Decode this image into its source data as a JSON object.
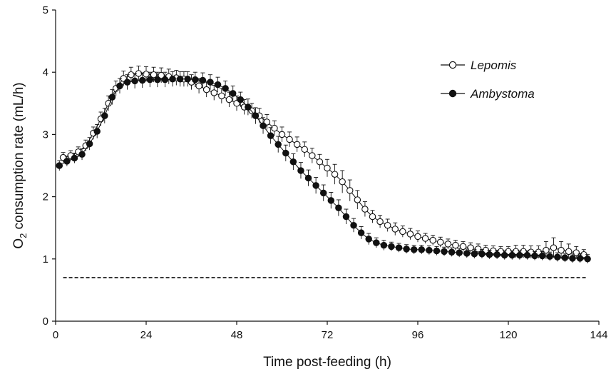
{
  "chart_data": {
    "type": "line",
    "title": "",
    "xlabel": "Time post-feeding (h)",
    "ylabel_parts": [
      "O",
      "2",
      " consumption rate (mL/h)"
    ],
    "xlim": [
      0,
      144
    ],
    "ylim": [
      0,
      5
    ],
    "xticks": [
      0,
      24,
      48,
      72,
      96,
      120,
      144
    ],
    "yticks": [
      0,
      1,
      2,
      3,
      4,
      5
    ],
    "grid": false,
    "legend_position": "top-right",
    "baseline": {
      "style": "dashed",
      "value": 0.7,
      "x_range": [
        2,
        141
      ]
    },
    "series": [
      {
        "name": "Lepomis",
        "marker": "open-circle",
        "color": "#111111",
        "x": [
          2,
          4,
          6,
          8,
          10,
          12,
          14,
          16,
          18,
          20,
          22,
          24,
          26,
          28,
          30,
          32,
          34,
          36,
          38,
          40,
          42,
          44,
          46,
          48,
          50,
          52,
          54,
          56,
          58,
          60,
          62,
          64,
          66,
          68,
          70,
          72,
          74,
          76,
          78,
          80,
          82,
          84,
          86,
          88,
          90,
          92,
          94,
          96,
          98,
          100,
          102,
          104,
          106,
          108,
          110,
          112,
          114,
          116,
          118,
          120,
          122,
          124,
          126,
          128,
          130,
          132,
          134,
          136,
          138,
          140
        ],
        "y": [
          2.63,
          2.66,
          2.72,
          2.82,
          3.02,
          3.25,
          3.5,
          3.74,
          3.9,
          3.96,
          3.98,
          3.97,
          3.96,
          3.95,
          3.93,
          3.91,
          3.89,
          3.84,
          3.78,
          3.72,
          3.67,
          3.62,
          3.56,
          3.5,
          3.44,
          3.38,
          3.3,
          3.2,
          3.1,
          3.0,
          2.92,
          2.84,
          2.76,
          2.66,
          2.56,
          2.46,
          2.36,
          2.24,
          2.1,
          1.95,
          1.8,
          1.68,
          1.6,
          1.54,
          1.48,
          1.44,
          1.4,
          1.36,
          1.33,
          1.3,
          1.27,
          1.24,
          1.22,
          1.2,
          1.18,
          1.16,
          1.14,
          1.13,
          1.12,
          1.12,
          1.12,
          1.12,
          1.11,
          1.11,
          1.14,
          1.18,
          1.14,
          1.12,
          1.1,
          1.07
        ],
        "err": [
          0.08,
          0.08,
          0.08,
          0.09,
          0.1,
          0.11,
          0.12,
          0.12,
          0.12,
          0.12,
          0.12,
          0.12,
          0.12,
          0.12,
          0.12,
          0.12,
          0.12,
          0.12,
          0.12,
          0.12,
          0.12,
          0.12,
          0.12,
          0.12,
          0.12,
          0.12,
          0.12,
          0.12,
          0.12,
          0.12,
          0.12,
          0.12,
          0.12,
          0.12,
          0.12,
          0.14,
          0.16,
          0.18,
          0.17,
          0.15,
          0.12,
          0.1,
          0.1,
          0.1,
          0.1,
          0.09,
          0.09,
          0.09,
          0.08,
          0.08,
          0.08,
          0.08,
          0.08,
          0.08,
          0.08,
          0.08,
          0.08,
          0.08,
          0.08,
          0.08,
          0.1,
          0.1,
          0.1,
          0.1,
          0.14,
          0.16,
          0.14,
          0.12,
          0.1,
          0.08
        ]
      },
      {
        "name": "Ambystoma",
        "marker": "filled-circle",
        "color": "#111111",
        "x": [
          1,
          3,
          5,
          7,
          9,
          11,
          13,
          15,
          17,
          19,
          21,
          23,
          25,
          27,
          29,
          31,
          33,
          35,
          37,
          39,
          41,
          43,
          45,
          47,
          49,
          51,
          53,
          55,
          57,
          59,
          61,
          63,
          65,
          67,
          69,
          71,
          73,
          75,
          77,
          79,
          81,
          83,
          85,
          87,
          89,
          91,
          93,
          95,
          97,
          99,
          101,
          103,
          105,
          107,
          109,
          111,
          113,
          115,
          117,
          119,
          121,
          123,
          125,
          127,
          129,
          131,
          133,
          135,
          137,
          139,
          141
        ],
        "y": [
          2.5,
          2.57,
          2.62,
          2.68,
          2.85,
          3.05,
          3.3,
          3.6,
          3.78,
          3.84,
          3.86,
          3.87,
          3.88,
          3.88,
          3.88,
          3.89,
          3.89,
          3.89,
          3.88,
          3.87,
          3.84,
          3.8,
          3.74,
          3.66,
          3.56,
          3.44,
          3.3,
          3.14,
          2.98,
          2.84,
          2.7,
          2.56,
          2.42,
          2.3,
          2.18,
          2.06,
          1.94,
          1.82,
          1.68,
          1.54,
          1.42,
          1.32,
          1.26,
          1.22,
          1.2,
          1.18,
          1.16,
          1.15,
          1.15,
          1.14,
          1.13,
          1.12,
          1.11,
          1.1,
          1.09,
          1.08,
          1.08,
          1.07,
          1.07,
          1.06,
          1.06,
          1.06,
          1.06,
          1.05,
          1.05,
          1.04,
          1.03,
          1.02,
          1.01,
          1.01,
          1.0
        ],
        "err": [
          0.08,
          0.08,
          0.08,
          0.09,
          0.1,
          0.11,
          0.12,
          0.12,
          0.12,
          0.12,
          0.12,
          0.12,
          0.12,
          0.12,
          0.12,
          0.12,
          0.12,
          0.12,
          0.12,
          0.12,
          0.12,
          0.12,
          0.12,
          0.12,
          0.12,
          0.13,
          0.13,
          0.13,
          0.13,
          0.13,
          0.13,
          0.13,
          0.13,
          0.13,
          0.13,
          0.13,
          0.13,
          0.13,
          0.12,
          0.11,
          0.1,
          0.09,
          0.08,
          0.08,
          0.07,
          0.07,
          0.07,
          0.07,
          0.07,
          0.07,
          0.07,
          0.07,
          0.07,
          0.07,
          0.07,
          0.07,
          0.07,
          0.07,
          0.07,
          0.07,
          0.07,
          0.07,
          0.07,
          0.07,
          0.07,
          0.07,
          0.07,
          0.07,
          0.07,
          0.07,
          0.07
        ]
      }
    ]
  }
}
